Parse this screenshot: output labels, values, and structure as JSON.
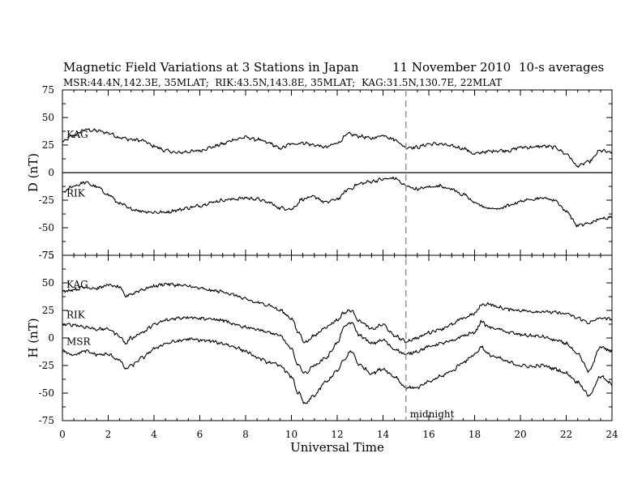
{
  "chart_data": {
    "type": "line",
    "title": "Magnetic Field Variations at 3 Stations in Japan",
    "date": "11 November 2010",
    "averaging": "10-s averages",
    "subtitle": "MSR:44.4N,142.3E, 35MLAT;  RIK:43.5N,143.8E, 35MLAT;  KAG:31.5N,130.7E, 22MLAT",
    "xlabel": "Universal Time",
    "xlim": [
      0,
      24
    ],
    "xticks": [
      0,
      2,
      4,
      6,
      8,
      10,
      12,
      14,
      16,
      18,
      20,
      22,
      24
    ],
    "grid": false,
    "annotation": {
      "text": "midnight",
      "x": 15
    },
    "panels": [
      {
        "ylabel": "D (nT)",
        "ylim": [
          -75,
          75
        ],
        "yticks": [
          75,
          50,
          25,
          0,
          -25,
          -50,
          -75
        ],
        "zero_line": true,
        "series": [
          {
            "name": "KAG",
            "x": [
              0,
              0.5,
              1,
              1.5,
              2,
              2.5,
              3,
              3.5,
              4,
              4.5,
              5,
              5.5,
              6,
              6.5,
              7,
              7.5,
              8,
              8.5,
              9,
              9.5,
              10,
              10.5,
              11,
              11.5,
              12,
              12.5,
              13,
              13.5,
              14,
              14.5,
              15,
              15.5,
              16,
              16.5,
              17,
              17.5,
              18,
              18.5,
              19,
              19.5,
              20,
              20.5,
              21,
              21.5,
              22,
              22.5,
              23,
              23.5,
              24
            ],
            "y": [
              28,
              34,
              39,
              38,
              36,
              32,
              30,
              29,
              24,
              20,
              18,
              19,
              20,
              23,
              26,
              30,
              32,
              30,
              27,
              22,
              26,
              27,
              25,
              23,
              27,
              35,
              33,
              31,
              34,
              30,
              23,
              23,
              26,
              26,
              24,
              22,
              17,
              19,
              20,
              20,
              23,
              23,
              24,
              23,
              17,
              6,
              10,
              20,
              18
            ]
          },
          {
            "name": "RIK",
            "x": [
              0,
              0.5,
              1,
              1.5,
              2,
              2.5,
              3,
              3.5,
              4,
              4.5,
              5,
              5.5,
              6,
              6.5,
              7,
              7.5,
              8,
              8.5,
              9,
              9.5,
              10,
              10.5,
              11,
              11.5,
              12,
              12.5,
              13,
              13.5,
              14,
              14.5,
              15,
              15.5,
              16,
              16.5,
              17,
              17.5,
              18,
              18.5,
              19,
              19.5,
              20,
              20.5,
              21,
              21.5,
              22,
              22.5,
              23,
              23.5,
              24
            ],
            "y": [
              -18,
              -12,
              -9,
              -13,
              -20,
              -28,
              -33,
              -35,
              -36,
              -36,
              -34,
              -32,
              -30,
              -27,
              -25,
              -24,
              -23,
              -24,
              -27,
              -32,
              -33,
              -24,
              -22,
              -27,
              -24,
              -15,
              -10,
              -8,
              -6,
              -5,
              -12,
              -15,
              -13,
              -12,
              -15,
              -20,
              -27,
              -32,
              -33,
              -30,
              -26,
              -24,
              -23,
              -25,
              -35,
              -48,
              -46,
              -42,
              -40
            ]
          }
        ]
      },
      {
        "ylabel": "H (nT)",
        "ylim": [
          -75,
          75
        ],
        "yticks": [
          75,
          50,
          25,
          0,
          -25,
          -50,
          -75
        ],
        "zero_line": false,
        "series": [
          {
            "name": "KAG",
            "x": [
              0,
              0.5,
              1,
              1.5,
              2,
              2.5,
              2.75,
              3,
              3.5,
              4,
              4.5,
              5,
              5.5,
              6,
              6.5,
              7,
              7.5,
              8,
              8.5,
              9,
              9.5,
              10,
              10.3,
              10.6,
              11,
              11.5,
              12,
              12.3,
              12.6,
              13,
              13.5,
              14,
              14.5,
              15,
              15.5,
              16,
              16.5,
              17,
              17.5,
              18,
              18.3,
              18.6,
              19,
              19.5,
              20,
              20.5,
              21,
              21.5,
              22,
              22.5,
              23,
              23.5,
              24
            ],
            "y": [
              42,
              44,
              46,
              45,
              48,
              46,
              38,
              40,
              44,
              47,
              49,
              48,
              47,
              45,
              43,
              42,
              39,
              35,
              32,
              30,
              25,
              18,
              5,
              -4,
              2,
              10,
              16,
              23,
              25,
              15,
              8,
              12,
              2,
              -3,
              0,
              5,
              8,
              12,
              18,
              22,
              30,
              31,
              28,
              26,
              25,
              24,
              24,
              23,
              22,
              18,
              14,
              18,
              17
            ]
          },
          {
            "name": "RIK",
            "x": [
              0,
              0.5,
              1,
              1.5,
              2,
              2.5,
              2.75,
              3,
              3.5,
              4,
              4.5,
              5,
              5.5,
              6,
              6.5,
              7,
              7.5,
              8,
              8.5,
              9,
              9.5,
              10,
              10.3,
              10.6,
              11,
              11.5,
              12,
              12.3,
              12.6,
              13,
              13.5,
              14,
              14.5,
              15,
              15.5,
              16,
              16.5,
              17,
              17.5,
              18,
              18.3,
              18.6,
              19,
              19.5,
              20,
              20.5,
              21,
              21.5,
              22,
              22.5,
              23,
              23.5,
              24
            ],
            "y": [
              12,
              12,
              10,
              8,
              8,
              2,
              -5,
              0,
              5,
              12,
              16,
              18,
              19,
              18,
              17,
              16,
              12,
              10,
              8,
              5,
              2,
              -10,
              -25,
              -32,
              -25,
              -18,
              -5,
              10,
              14,
              2,
              -5,
              -2,
              -10,
              -15,
              -12,
              -8,
              -5,
              -3,
              2,
              5,
              15,
              10,
              8,
              5,
              3,
              2,
              1,
              -2,
              -5,
              -15,
              -30,
              -8,
              -12
            ]
          },
          {
            "name": "MSR",
            "x": [
              0,
              0.5,
              1,
              1.5,
              2,
              2.5,
              2.75,
              3,
              3.5,
              4,
              4.5,
              5,
              5.5,
              6,
              6.5,
              7,
              7.5,
              8,
              8.5,
              9,
              9.5,
              10,
              10.3,
              10.6,
              11,
              11.5,
              12,
              12.3,
              12.6,
              13,
              13.5,
              14,
              14.5,
              15,
              15.5,
              16,
              16.5,
              17,
              17.5,
              18,
              18.3,
              18.6,
              19,
              19.5,
              20,
              20.5,
              21,
              21.5,
              22,
              22.5,
              23,
              23.5,
              24
            ],
            "y": [
              -12,
              -15,
              -12,
              -15,
              -15,
              -20,
              -28,
              -25,
              -18,
              -10,
              -5,
              -3,
              -1,
              -2,
              -3,
              -5,
              -8,
              -12,
              -18,
              -22,
              -25,
              -35,
              -50,
              -60,
              -52,
              -40,
              -30,
              -20,
              -12,
              -25,
              -32,
              -28,
              -35,
              -45,
              -45,
              -40,
              -35,
              -30,
              -22,
              -15,
              -8,
              -15,
              -18,
              -22,
              -25,
              -26,
              -25,
              -28,
              -32,
              -40,
              -52,
              -35,
              -42
            ]
          }
        ]
      }
    ]
  }
}
